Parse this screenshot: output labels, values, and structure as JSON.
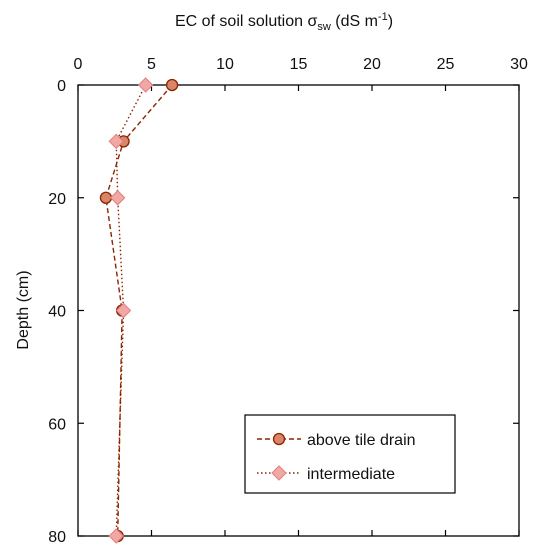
{
  "chart_data": {
    "type": "line",
    "orientation": "depth-profile",
    "x_axis": {
      "title_main": "EC of soil solution σ",
      "title_subscript": "sw",
      "title_unit_prefix": " (dS m",
      "title_unit_superscript": "-1",
      "title_unit_suffix": ")",
      "position": "top",
      "range": [
        0,
        30
      ],
      "ticks": [
        0,
        5,
        10,
        15,
        20,
        25,
        30
      ],
      "tick_labels": [
        "0",
        "5",
        "10",
        "15",
        "20",
        "25",
        "30"
      ]
    },
    "y_axis": {
      "title": "Depth (cm)",
      "range": [
        0,
        80
      ],
      "inverted": true,
      "ticks": [
        0,
        20,
        40,
        60,
        80
      ],
      "tick_labels": [
        "0",
        "20",
        "40",
        "60",
        "80"
      ]
    },
    "legend_position": "bottom-right",
    "series": [
      {
        "name": "above tile drain",
        "color": "#8b2500",
        "marker": "circle",
        "line_style": "dashed",
        "points": [
          {
            "depth": 0,
            "ec": 6.4
          },
          {
            "depth": 10,
            "ec": 3.1
          },
          {
            "depth": 20,
            "ec": 1.9
          },
          {
            "depth": 40,
            "ec": 3.0
          },
          {
            "depth": 80,
            "ec": 2.7
          }
        ]
      },
      {
        "name": "intermediate",
        "color": "#8b2500",
        "marker": "diamond",
        "line_style": "dotted",
        "points": [
          {
            "depth": 0,
            "ec": 4.6
          },
          {
            "depth": 10,
            "ec": 2.6
          },
          {
            "depth": 20,
            "ec": 2.7
          },
          {
            "depth": 40,
            "ec": 3.1
          },
          {
            "depth": 80,
            "ec": 2.6
          }
        ]
      }
    ]
  }
}
